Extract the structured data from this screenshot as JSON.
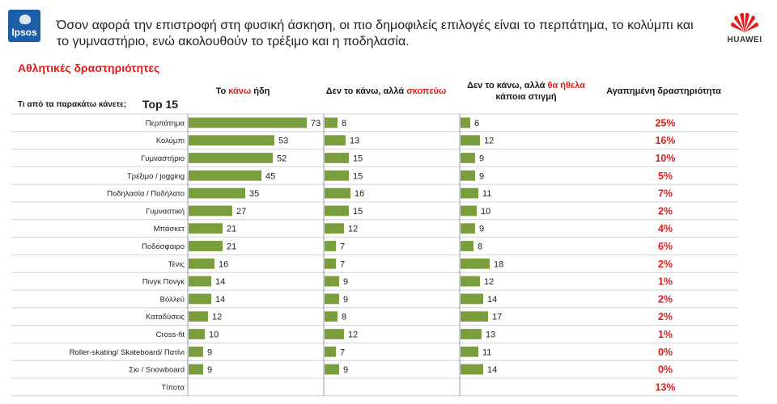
{
  "header": {
    "ipsos_logo": "Ipsos",
    "text": "Όσον αφορά την επιστροφή στη φυσική άσκηση, οι πιο δημοφιλείς επιλογές είναι το περπάτημα, το κολύμπι και το γυμναστήριο, ενώ ακολουθούν το τρέξιμο και η ποδηλασία.",
    "huawei_logo": "HUAWEI"
  },
  "section_title": "Αθλητικές δραστηριότητες",
  "question": "Τι από τα παρακάτω κάνετε;",
  "top_label": "Top 15",
  "columns": {
    "c1_a": "Το ",
    "c1_b": "κάνω",
    "c1_c": " ήδη",
    "c2_a": "Δεν το κάνω, αλλά ",
    "c2_b": "σκοπεύω",
    "c3_a": "Δεν το κάνω, αλλά ",
    "c3_b": "θα ήθελα",
    "c3_c": "κάποια στιγμή",
    "c4": "Αγαπημένη δραστηριότητα"
  },
  "colors": {
    "bar": "#7a9e3e",
    "accent": "#e41b1b",
    "grid": "#c8c8c8"
  },
  "chart_data": {
    "type": "bar",
    "categories": [
      "Περπάτημα",
      "Κολύμπι",
      "Γυμναστήριο",
      "Τρέξιμο / jogging",
      "Ποδηλασία / Ποδήλατο",
      "Γυμναστική",
      "Μπάσκετ",
      "Ποδόσφαιρο",
      "Τένις",
      "Πινγκ Πονγκ",
      "Βόλλεϋ",
      "Καταδύσεις",
      "Cross-fit",
      "Roller-skating/ Skateboard/ Πατίνι",
      "Σκι / Snowboard",
      "Τίποτα"
    ],
    "series": [
      {
        "name": "Το κάνω ήδη",
        "values": [
          73,
          53,
          52,
          45,
          35,
          27,
          21,
          21,
          16,
          14,
          14,
          12,
          10,
          9,
          9,
          null
        ]
      },
      {
        "name": "Δεν το κάνω, αλλά σκοπεύω",
        "values": [
          8,
          13,
          15,
          15,
          16,
          15,
          12,
          7,
          7,
          9,
          9,
          8,
          12,
          7,
          9,
          null
        ]
      },
      {
        "name": "Δεν το κάνω, αλλά θα ήθελα κάποια στιγμή",
        "values": [
          6,
          12,
          9,
          9,
          11,
          10,
          9,
          8,
          18,
          12,
          14,
          17,
          13,
          11,
          14,
          null
        ]
      }
    ],
    "favorite": [
      "25%",
      "16%",
      "10%",
      "5%",
      "7%",
      "2%",
      "4%",
      "6%",
      "2%",
      "1%",
      "2%",
      "2%",
      "1%",
      "0%",
      "0%",
      "13%"
    ]
  }
}
